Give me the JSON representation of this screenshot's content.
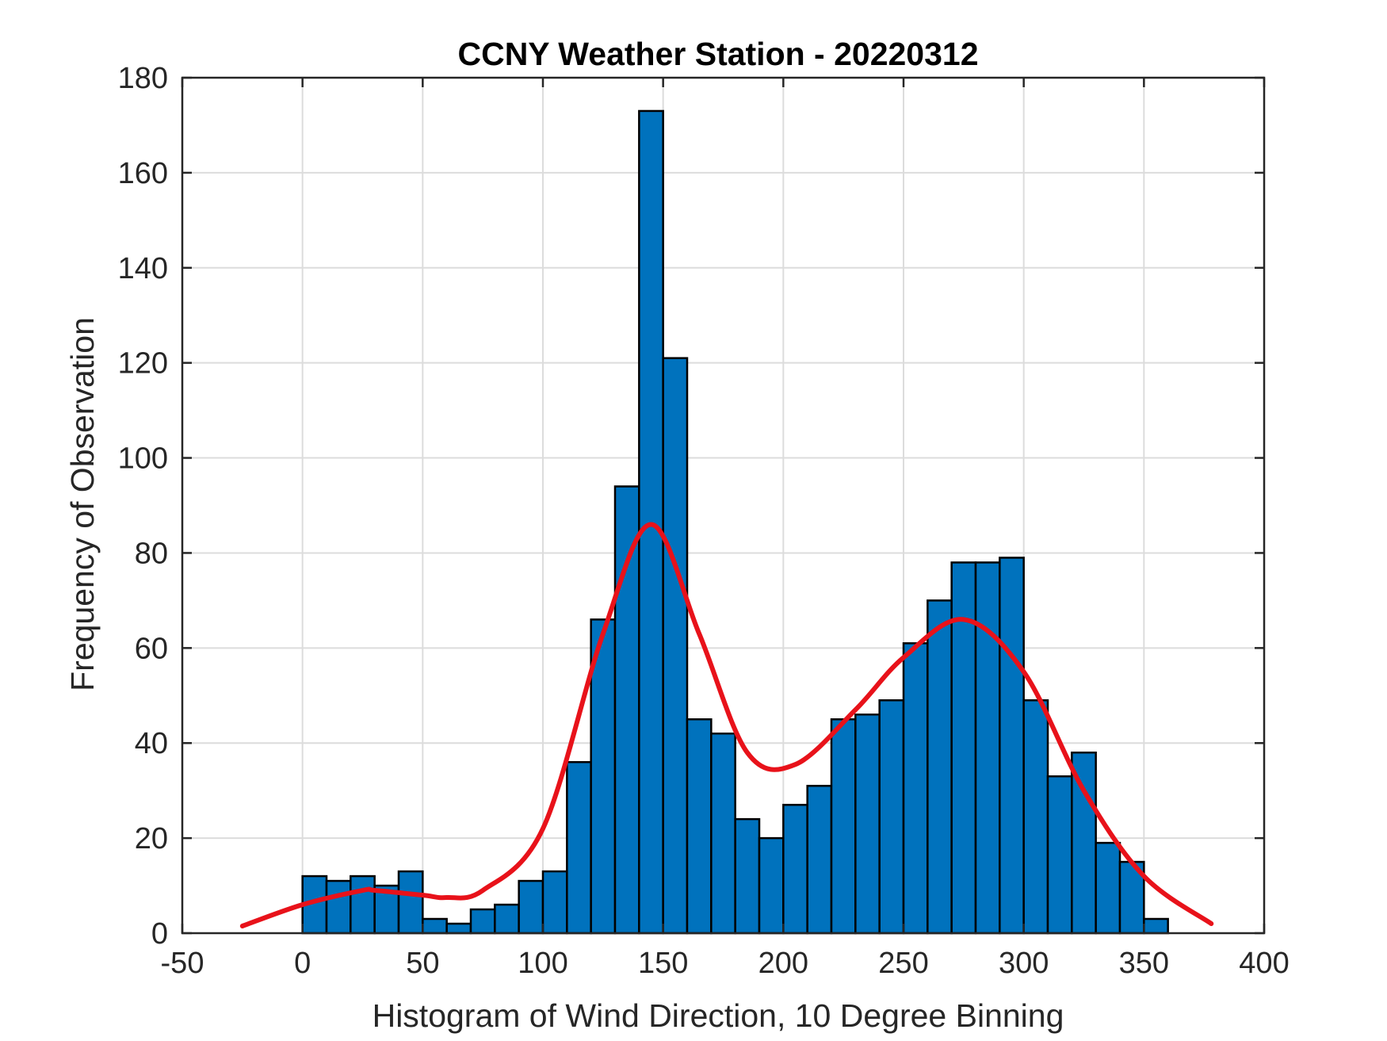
{
  "chart_data": {
    "type": "bar",
    "title": "CCNY Weather Station - 20220312",
    "xlabel": "Histogram of Wind Direction, 10 Degree Binning",
    "ylabel": "Frequency of Observation",
    "xlim": [
      -50,
      400
    ],
    "ylim": [
      0,
      180
    ],
    "xticks": [
      "-50",
      "0",
      "50",
      "100",
      "150",
      "200",
      "250",
      "300",
      "350",
      "400"
    ],
    "yticks": [
      "0",
      "20",
      "40",
      "60",
      "80",
      "100",
      "120",
      "140",
      "160",
      "180"
    ],
    "grid": true,
    "bin_width": 10,
    "bin_starts": [
      0,
      10,
      20,
      30,
      40,
      50,
      60,
      70,
      80,
      90,
      100,
      110,
      120,
      130,
      140,
      150,
      160,
      170,
      180,
      190,
      200,
      210,
      220,
      230,
      240,
      250,
      260,
      270,
      280,
      290,
      300,
      310,
      320,
      330,
      340,
      350
    ],
    "values": [
      12,
      11,
      12,
      10,
      13,
      3,
      2,
      5,
      6,
      11,
      13,
      36,
      66,
      94,
      173,
      121,
      45,
      42,
      24,
      20,
      27,
      31,
      45,
      46,
      49,
      61,
      70,
      78,
      78,
      79,
      49,
      33,
      38,
      19,
      15,
      3
    ],
    "fit_curve": {
      "name": "density fit",
      "x": [
        -25,
        0,
        25,
        30,
        50,
        60,
        75,
        100,
        125,
        145,
        165,
        185,
        205,
        230,
        250,
        275,
        300,
        325,
        350,
        378
      ],
      "y": [
        1.5,
        6,
        9,
        9,
        8,
        7.5,
        9,
        22,
        63,
        86,
        63,
        38,
        35.5,
        47,
        58,
        66,
        55,
        30,
        12,
        2
      ]
    },
    "colors": {
      "bar_fill": "#0072bd",
      "bar_edge": "#000000",
      "curve": "#e8121a",
      "grid": "#dcdcdc"
    }
  }
}
